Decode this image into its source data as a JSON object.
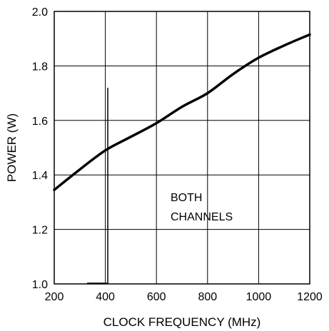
{
  "chart_data": {
    "type": "line",
    "title": "",
    "xlabel": "CLOCK FREQUENCY (MHz)",
    "ylabel": "POWER (W)",
    "xlim": [
      200,
      1200
    ],
    "ylim": [
      1.0,
      2.0
    ],
    "x_ticks": [
      200,
      400,
      600,
      800,
      1000,
      1200
    ],
    "y_ticks": [
      1.0,
      1.2,
      1.4,
      1.6,
      1.8,
      2.0
    ],
    "x_tick_labels": [
      "200",
      "400",
      "600",
      "800",
      "1000",
      "1200"
    ],
    "y_tick_labels": [
      "1.0",
      "1.2",
      "1.4",
      "1.6",
      "1.8",
      "2.0"
    ],
    "grid": true,
    "annotation": [
      "BOTH",
      "CHANNELS"
    ],
    "series": [
      {
        "x": [
          200,
          300,
          400,
          500,
          600,
          700,
          800,
          900,
          1000,
          1100,
          1200
        ],
        "y": [
          1.345,
          1.42,
          1.49,
          1.54,
          1.59,
          1.65,
          1.7,
          1.77,
          1.83,
          1.875,
          1.915
        ]
      }
    ],
    "colors": {
      "line": "#000000",
      "grid": "#000000"
    }
  }
}
